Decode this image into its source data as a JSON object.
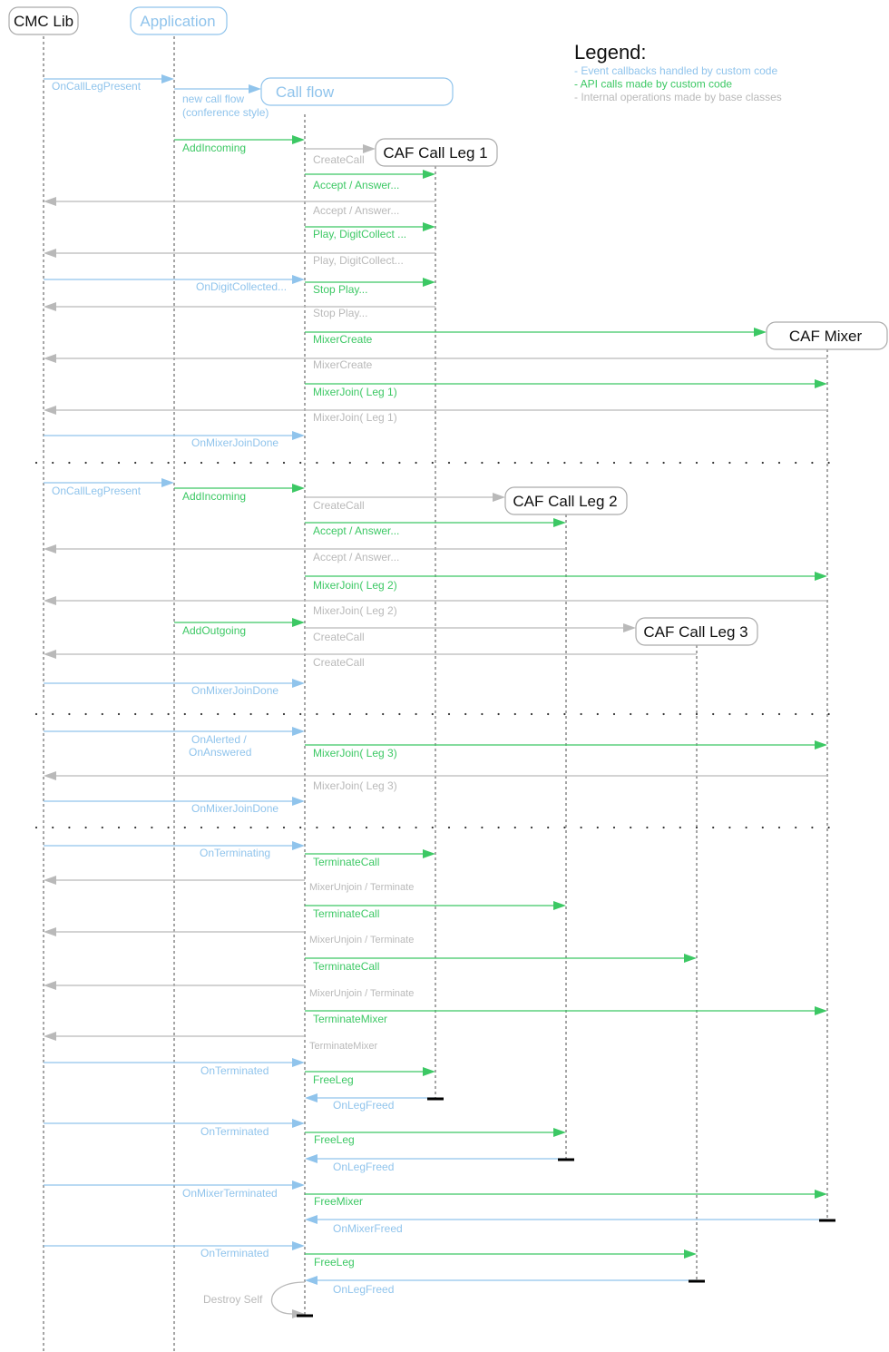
{
  "colors": {
    "callback": "#90c4ec",
    "api": "#3cc864",
    "internal": "#b9b9b9",
    "lifeline": "#777777",
    "box_border": "#aaaaaa",
    "text_dark": "#111111",
    "terminator": "#000000"
  },
  "participants": {
    "cmc": "CMC Lib",
    "app": "Application",
    "flow": "Call flow",
    "leg1": "CAF Call Leg 1",
    "mixer": "CAF Mixer",
    "leg2": "CAF Call Leg 2",
    "leg3": "CAF Call Leg 3"
  },
  "legend": {
    "title": "Legend:",
    "items": [
      {
        "kind": "callback",
        "text": "- Event callbacks handled by custom code"
      },
      {
        "kind": "api",
        "text": "- API calls made by custom code"
      },
      {
        "kind": "internal",
        "text": "- Internal operations made by base classes"
      }
    ]
  },
  "messages": [
    {
      "kind": "callback",
      "text": "OnCallLegPresent"
    },
    {
      "kind": "callback",
      "text": "new call flow"
    },
    {
      "kind": "callback",
      "text": "(conference style)"
    },
    {
      "kind": "api",
      "text": "AddIncoming"
    },
    {
      "kind": "internal",
      "text": "CreateCall"
    },
    {
      "kind": "api",
      "text": "Accept / Answer..."
    },
    {
      "kind": "internal",
      "text": "Accept / Answer..."
    },
    {
      "kind": "api",
      "text": "Play, DigitCollect ..."
    },
    {
      "kind": "internal",
      "text": "Play, DigitCollect..."
    },
    {
      "kind": "callback",
      "text": "OnDigitCollected..."
    },
    {
      "kind": "api",
      "text": "Stop Play..."
    },
    {
      "kind": "internal",
      "text": "Stop Play..."
    },
    {
      "kind": "api",
      "text": "MixerCreate"
    },
    {
      "kind": "internal",
      "text": "MixerCreate"
    },
    {
      "kind": "api",
      "text": "MixerJoin( Leg 1)"
    },
    {
      "kind": "internal",
      "text": "MixerJoin( Leg 1)"
    },
    {
      "kind": "callback",
      "text": "OnMixerJoinDone"
    },
    {
      "kind": "callback",
      "text": "OnCallLegPresent"
    },
    {
      "kind": "api",
      "text": "AddIncoming"
    },
    {
      "kind": "internal",
      "text": "CreateCall"
    },
    {
      "kind": "api",
      "text": "Accept / Answer..."
    },
    {
      "kind": "internal",
      "text": "Accept / Answer..."
    },
    {
      "kind": "api",
      "text": "MixerJoin( Leg 2)"
    },
    {
      "kind": "internal",
      "text": "MixerJoin( Leg 2)"
    },
    {
      "kind": "api",
      "text": "AddOutgoing"
    },
    {
      "kind": "internal",
      "text": "CreateCall"
    },
    {
      "kind": "internal",
      "text": "CreateCall"
    },
    {
      "kind": "callback",
      "text": "OnMixerJoinDone"
    },
    {
      "kind": "callback",
      "text": "OnAlerted /"
    },
    {
      "kind": "callback",
      "text": "OnAnswered"
    },
    {
      "kind": "api",
      "text": "MixerJoin( Leg 3)"
    },
    {
      "kind": "internal",
      "text": "MixerJoin( Leg 3)"
    },
    {
      "kind": "callback",
      "text": "OnMixerJoinDone"
    },
    {
      "kind": "callback",
      "text": "OnTerminating"
    },
    {
      "kind": "api",
      "text": "TerminateCall"
    },
    {
      "kind": "internal",
      "text": "MixerUnjoin / Terminate"
    },
    {
      "kind": "api",
      "text": "TerminateCall"
    },
    {
      "kind": "internal",
      "text": "MixerUnjoin / Terminate"
    },
    {
      "kind": "api",
      "text": "TerminateCall"
    },
    {
      "kind": "internal",
      "text": "MixerUnjoin / Terminate"
    },
    {
      "kind": "api",
      "text": "TerminateMixer"
    },
    {
      "kind": "internal",
      "text": "TerminateMixer"
    },
    {
      "kind": "callback",
      "text": "OnTerminated"
    },
    {
      "kind": "api",
      "text": "FreeLeg"
    },
    {
      "kind": "callback",
      "text": "OnLegFreed"
    },
    {
      "kind": "callback",
      "text": "OnTerminated"
    },
    {
      "kind": "api",
      "text": "FreeLeg"
    },
    {
      "kind": "callback",
      "text": "OnLegFreed"
    },
    {
      "kind": "callback",
      "text": "OnMixerTerminated"
    },
    {
      "kind": "api",
      "text": "FreeMixer"
    },
    {
      "kind": "callback",
      "text": "OnMixerFreed"
    },
    {
      "kind": "callback",
      "text": "OnTerminated"
    },
    {
      "kind": "api",
      "text": "FreeLeg"
    },
    {
      "kind": "callback",
      "text": "OnLegFreed"
    },
    {
      "kind": "internal",
      "text": "Destroy Self"
    }
  ]
}
